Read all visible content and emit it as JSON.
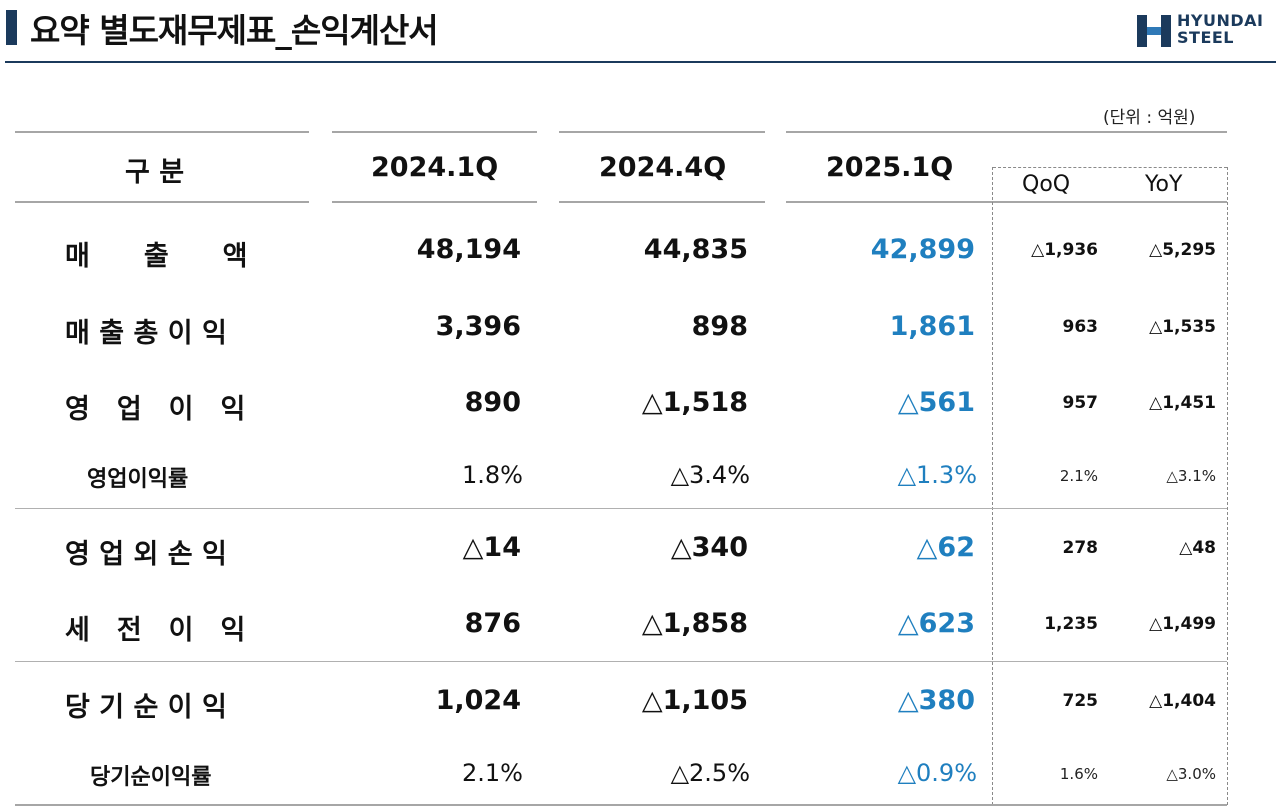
{
  "header": {
    "title": "요약 별도재무제표_손익계산서",
    "unit": "(단위 : 억원)"
  },
  "logo": {
    "line1": "HYUNDAI",
    "line2": "STEEL",
    "color": "#1b3a5c"
  },
  "columns": {
    "category": "구 분",
    "p1": "2024.1Q",
    "p2": "2024.4Q",
    "p3": "2025.1Q",
    "qoq": "QoQ",
    "yoy": "YoY"
  },
  "colors": {
    "highlight": "#1f7fbf"
  },
  "rows": [
    {
      "label": "매　　출　　액",
      "p1": "48,194",
      "p2": "44,835",
      "p3": "42,899",
      "qoq": "△1,936",
      "yoy": "△5,295"
    },
    {
      "label": "매 출 총 이 익",
      "p1": "3,396",
      "p2": "898",
      "p3": "1,861",
      "qoq": "963",
      "yoy": "△1,535"
    },
    {
      "label": "영　업　이　익",
      "p1": "890",
      "p2": "△1,518",
      "p3": "△561",
      "qoq": "957",
      "yoy": "△1,451"
    },
    {
      "label": "영업이익률",
      "p1": "1.8%",
      "p2": "△3.4%",
      "p3": "△1.3%",
      "qoq": "2.1%",
      "yoy": "△3.1%"
    },
    {
      "label": "영 업 외 손 익",
      "p1": "△14",
      "p2": "△340",
      "p3": "△62",
      "qoq": "278",
      "yoy": "△48"
    },
    {
      "label": "세　전　이　익",
      "p1": "876",
      "p2": "△1,858",
      "p3": "△623",
      "qoq": "1,235",
      "yoy": "△1,499"
    },
    {
      "label": "당 기 순 이 익",
      "p1": "1,024",
      "p2": "△1,105",
      "p3": "△380",
      "qoq": "725",
      "yoy": "△1,404"
    },
    {
      "label": "당기순이익률",
      "p1": "2.1%",
      "p2": "△2.5%",
      "p3": "△0.9%",
      "qoq": "1.6%",
      "yoy": "△3.0%"
    }
  ]
}
